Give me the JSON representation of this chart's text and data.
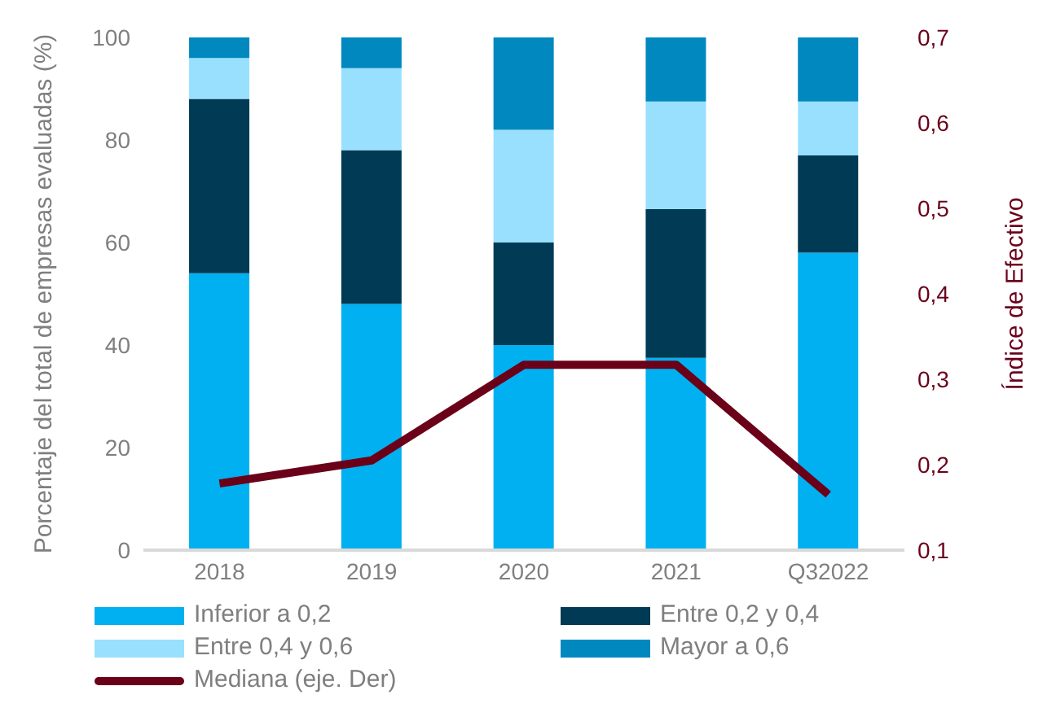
{
  "chart_data": {
    "type": "bar",
    "stacked": true,
    "ylabel": "Porcentaje del total de empresas evaluadas (%)",
    "y2label": "Índice de Efectivo",
    "categories": [
      "2018",
      "2019",
      "2020",
      "2021",
      "Q32022"
    ],
    "series": [
      {
        "name": "Inferior a 0,2",
        "color": "#00b0f0",
        "values": [
          54,
          48,
          40,
          37.5,
          58
        ]
      },
      {
        "name": "Entre 0,2 y 0,4",
        "color": "#003a54",
        "values": [
          34,
          30,
          20,
          29,
          19
        ]
      },
      {
        "name": "Entre 0,4 y 0,6",
        "color": "#99e0ff",
        "values": [
          8,
          16,
          22,
          21,
          10.5
        ]
      },
      {
        "name": "Mayor a 0,6",
        "color": "#0088bf",
        "values": [
          4,
          6,
          18,
          12.5,
          12.5
        ]
      },
      {
        "name": "Mediana (eje. Der)",
        "type": "line",
        "axis": "y2",
        "color": "#6b0019",
        "values": [
          0.178,
          0.205,
          0.317,
          0.317,
          0.165
        ]
      }
    ],
    "ylim": [
      0,
      100
    ],
    "yticks": [
      0,
      20,
      40,
      60,
      80,
      100
    ],
    "y2lim": [
      0.1,
      0.7
    ],
    "y2ticks": [
      {
        "value": 0.1,
        "label": "0,1"
      },
      {
        "value": 0.2,
        "label": "0,2"
      },
      {
        "value": 0.3,
        "label": "0,3"
      },
      {
        "value": 0.4,
        "label": "0,4"
      },
      {
        "value": 0.5,
        "label": "0,5"
      },
      {
        "value": 0.6,
        "label": "0,6"
      },
      {
        "value": 0.7,
        "label": "0,7"
      }
    ],
    "legend": "bottom",
    "marker": "none"
  }
}
